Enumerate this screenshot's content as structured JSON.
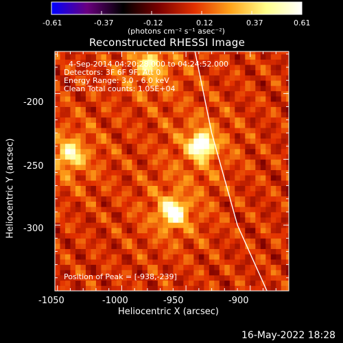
{
  "colorbar": {
    "tick_labels": [
      "-0.61",
      "-0.37",
      "-0.12",
      "0.12",
      "0.37",
      "0.61"
    ],
    "unit_label": "(photons cm⁻² s⁻¹ asec⁻²)",
    "range": [
      -0.61,
      0.61
    ],
    "colors": [
      "#0000ff",
      "#6a007f",
      "#000000",
      "#7a0000",
      "#e23000",
      "#ffa31a",
      "#ffff8a",
      "#ffffff"
    ]
  },
  "plot": {
    "title": "Reconstructed RHESSI Image",
    "info_lines": [
      "4-Sep-2014 04:20:28.000 to 04:24:52.000",
      "Detectors: 3F 6F 9F, Att 0",
      "Energy Range: 3.0 - 6.0 keV",
      "Clean    Total counts: 1.05E+04"
    ],
    "peak_label": "Position of Peak = [-938,-239]",
    "footer_timestamp": "16-May-2022 18:28"
  },
  "chart_data": {
    "type": "heatmap",
    "title": "Reconstructed RHESSI Image",
    "xlabel": "Heliocentric X (arcsec)",
    "ylabel": "Heliocentric Y (arcsec)",
    "x_ticks": [
      "-1050",
      "-1000",
      "-950",
      "-900"
    ],
    "y_ticks": [
      "-200",
      "-250",
      "-300"
    ],
    "x_tick_values": [
      -1050,
      -1000,
      -950,
      -900
    ],
    "y_tick_values": [
      -200,
      -250,
      -300
    ],
    "xlim": [
      -1052,
      -870
    ],
    "ylim": [
      -350,
      -168
    ],
    "peak_position": [
      -938,
      -239
    ],
    "value_range": [
      -0.61,
      0.61
    ],
    "sources": [
      {
        "x": -938,
        "y": -239,
        "peak": 0.61
      },
      {
        "x": -960,
        "y": -290,
        "peak": 0.55
      },
      {
        "x": -1040,
        "y": -246,
        "peak": 0.35
      },
      {
        "x": -978,
        "y": -178,
        "peak": 0.28
      }
    ],
    "limb_curve": [
      [
        -943,
        -168
      ],
      [
        -930,
        -230
      ],
      [
        -910,
        -300
      ],
      [
        -887,
        -350
      ]
    ],
    "grid": false
  }
}
